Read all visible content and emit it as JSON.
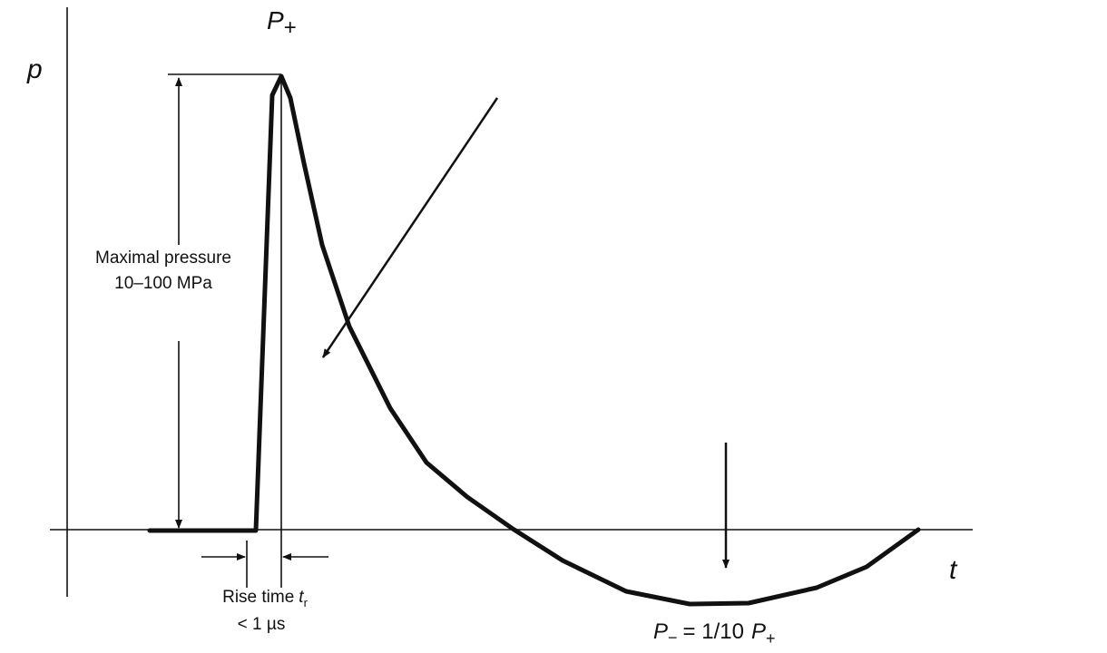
{
  "axes": {
    "y_label": "p",
    "x_label": "t"
  },
  "peak": {
    "symbol": "P",
    "subscript": "+"
  },
  "max_pressure": {
    "line1": "Maximal pressure",
    "line2": "10–100 MPa"
  },
  "rise_time": {
    "text": "Rise time",
    "symbol": "t",
    "subscript": "r",
    "value": "< 1 µs"
  },
  "negative_peak": {
    "symbol": "P",
    "subscript": "−",
    "relation": "= 1/10",
    "ref_symbol": "P",
    "ref_subscript": "+"
  }
}
